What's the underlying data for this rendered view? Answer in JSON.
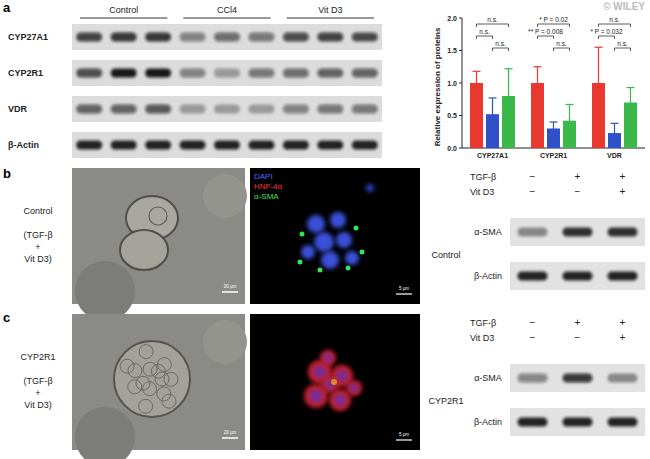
{
  "panel_labels": [
    "a",
    "b",
    "c"
  ],
  "watermark": "© WILEY",
  "blot_a": {
    "groups": [
      "Control",
      "CCl4",
      "Vit D3"
    ],
    "rows": [
      {
        "name": "CYP27A1",
        "bands": [
          0.75,
          0.8,
          0.8,
          0.45,
          0.55,
          0.5,
          0.7,
          0.75,
          0.72
        ]
      },
      {
        "name": "CYP2R1",
        "bands": [
          0.7,
          0.95,
          0.95,
          0.45,
          0.35,
          0.5,
          0.55,
          0.6,
          0.6
        ]
      },
      {
        "name": "VDR",
        "bands": [
          0.6,
          0.6,
          0.65,
          0.35,
          0.3,
          0.3,
          0.45,
          0.5,
          0.5
        ]
      },
      {
        "name": "β-Actin",
        "bands": [
          0.9,
          0.9,
          0.9,
          0.9,
          0.9,
          0.9,
          0.9,
          0.9,
          0.9
        ]
      }
    ]
  },
  "chart_data": {
    "type": "bar",
    "y_label": "Relative expression of proteins",
    "categories": [
      "CYP27A1",
      "CYP2R1",
      "VDR"
    ],
    "series": [
      {
        "name": "Control",
        "color": "#e8382f",
        "values": [
          1.0,
          1.0,
          1.0
        ],
        "errors": [
          0.18,
          0.25,
          0.55
        ]
      },
      {
        "name": "CCl4",
        "color": "#2f51c8",
        "values": [
          0.52,
          0.3,
          0.23
        ],
        "errors": [
          0.25,
          0.1,
          0.15
        ]
      },
      {
        "name": "Vit D3",
        "color": "#3ab84a",
        "values": [
          0.8,
          0.42,
          0.7
        ],
        "errors": [
          0.42,
          0.25,
          0.23
        ]
      }
    ],
    "ylim": [
      0,
      2.0
    ],
    "yticks": [
      {
        "value": 0,
        "label": "0.0"
      },
      {
        "value": 0.5,
        "label": "0.5"
      },
      {
        "value": 1.0,
        "label": "1.0"
      },
      {
        "value": 1.5,
        "label": "1.5"
      },
      {
        "value": 2.0,
        "label": "2.0"
      }
    ],
    "annotations": [
      {
        "category": 0,
        "from": 0,
        "to": 2,
        "label": "n.s."
      },
      {
        "category": 0,
        "from": 0,
        "to": 1,
        "label": "n.s."
      },
      {
        "category": 0,
        "from": 1,
        "to": 2,
        "label": "n.s."
      },
      {
        "category": 1,
        "from": 0,
        "to": 2,
        "label": "* P = 0.02"
      },
      {
        "category": 1,
        "from": 0,
        "to": 1,
        "label": "** P = 0.008"
      },
      {
        "category": 1,
        "from": 1,
        "to": 2,
        "label": "n.s."
      },
      {
        "category": 2,
        "from": 0,
        "to": 2,
        "label": "n.s."
      },
      {
        "category": 2,
        "from": 0,
        "to": 1,
        "label": "* P = 0.032"
      },
      {
        "category": 2,
        "from": 1,
        "to": 2,
        "label": "n.s."
      }
    ]
  },
  "panel_b": {
    "condition": "Control",
    "treatment": [
      "(TGF-β",
      "+",
      "Vit D3)"
    ],
    "scale_bars": [
      "20 μm",
      "5 μm"
    ],
    "stain_labels": [
      "DAPI",
      "HNF-4α",
      "α-SMA"
    ],
    "blot": {
      "group": "Control",
      "conditions": [
        {
          "name": "TGF-β",
          "signs": [
            "−",
            "+",
            "+"
          ]
        },
        {
          "name": "Vit D3",
          "signs": [
            "−",
            "−",
            "+"
          ]
        }
      ],
      "rows": [
        {
          "name": "α-SMA",
          "bands": [
            0.4,
            0.85,
            0.85
          ]
        },
        {
          "name": "β-Actin",
          "bands": [
            0.9,
            0.9,
            0.9
          ]
        }
      ]
    }
  },
  "panel_c": {
    "condition": "CYP2R1",
    "treatment": [
      "(TGF-β",
      "+",
      "Vit D3)"
    ],
    "scale_bars": [
      "20 μm",
      "5 μm"
    ],
    "blot": {
      "group": "CYP2R1",
      "conditions": [
        {
          "name": "TGF-β",
          "signs": [
            "−",
            "+",
            "+"
          ]
        },
        {
          "name": "Vit D3",
          "signs": [
            "−",
            "−",
            "+"
          ]
        }
      ],
      "rows": [
        {
          "name": "α-SMA",
          "bands": [
            0.45,
            0.8,
            0.4
          ]
        },
        {
          "name": "β-Actin",
          "bands": [
            0.9,
            0.9,
            0.9
          ]
        }
      ]
    }
  }
}
